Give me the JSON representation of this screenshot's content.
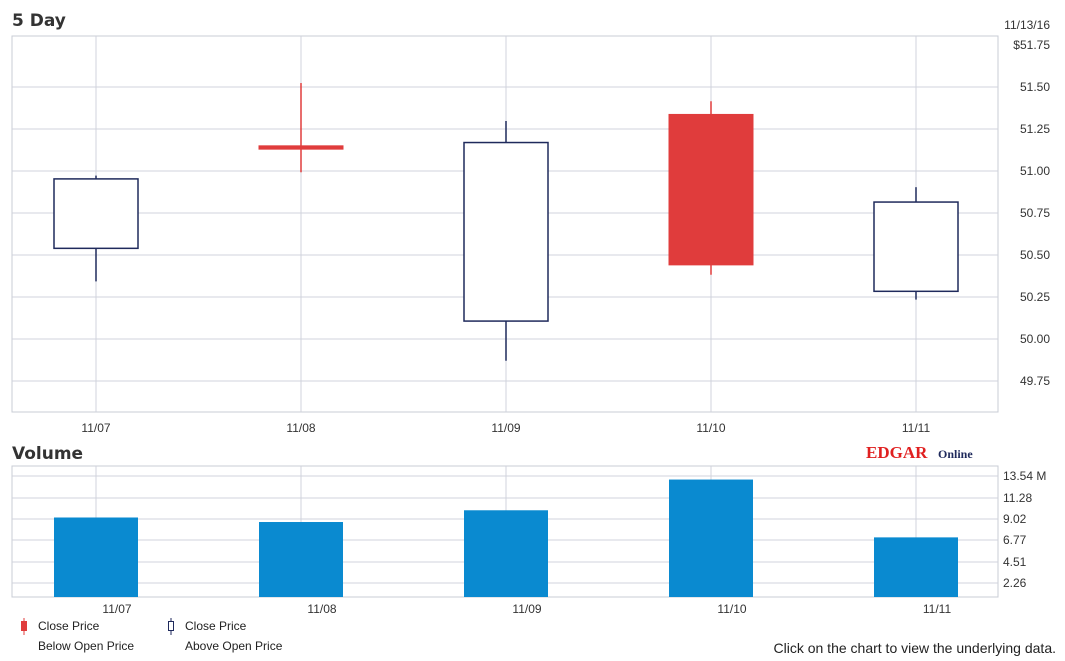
{
  "chart_data": [
    {
      "type": "candlestick",
      "title": "5 Day",
      "date_label": "11/13/16",
      "categories": [
        "11/07",
        "11/08",
        "11/09",
        "11/10",
        "11/11"
      ],
      "candles": [
        {
          "date": "11/07",
          "open": 50.52,
          "high": 50.96,
          "low": 50.32,
          "close": 50.94,
          "direction": "up"
        },
        {
          "date": "11/08",
          "open": 51.14,
          "high": 51.52,
          "low": 50.98,
          "close": 51.12,
          "direction": "down"
        },
        {
          "date": "11/09",
          "open": 50.08,
          "high": 51.29,
          "low": 49.84,
          "close": 51.16,
          "direction": "up"
        },
        {
          "date": "11/10",
          "open": 51.33,
          "high": 51.41,
          "low": 50.36,
          "close": 50.42,
          "direction": "down"
        },
        {
          "date": "11/11",
          "open": 50.26,
          "high": 50.89,
          "low": 50.21,
          "close": 50.8,
          "direction": "up"
        }
      ],
      "y_ticks": [
        "$51.75",
        "51.50",
        "51.25",
        "51.00",
        "50.75",
        "50.50",
        "50.25",
        "50.00",
        "49.75"
      ],
      "ylim": [
        49.53,
        51.75
      ],
      "grid": true
    },
    {
      "type": "bar",
      "title": "Volume",
      "categories": [
        "11/07",
        "11/08",
        "11/09",
        "11/10",
        "11/11"
      ],
      "values": [
        8.8,
        8.3,
        9.6,
        13.0,
        6.6
      ],
      "y_ticks": [
        "13.54 M",
        "11.28",
        "9.02",
        "6.77",
        "4.51",
        "2.26"
      ],
      "ylim": [
        0,
        14.5
      ],
      "bar_color": "#0a8ad0",
      "grid": true
    }
  ],
  "colors": {
    "up": "#1f2a5c",
    "down": "#e03c3c",
    "grid": "#d0d3dc",
    "volume": "#0a8ad0"
  },
  "branding": {
    "edgar": "EDGAR",
    "online": "Online"
  },
  "legend": [
    {
      "line1": "Close Price",
      "line2": "Below Open Price",
      "icon": "red-candle-icon"
    },
    {
      "line1": "Close Price",
      "line2": "Above Open Price",
      "icon": "hollow-candle-icon"
    }
  ],
  "footer": "Click on the chart to view the underlying data."
}
